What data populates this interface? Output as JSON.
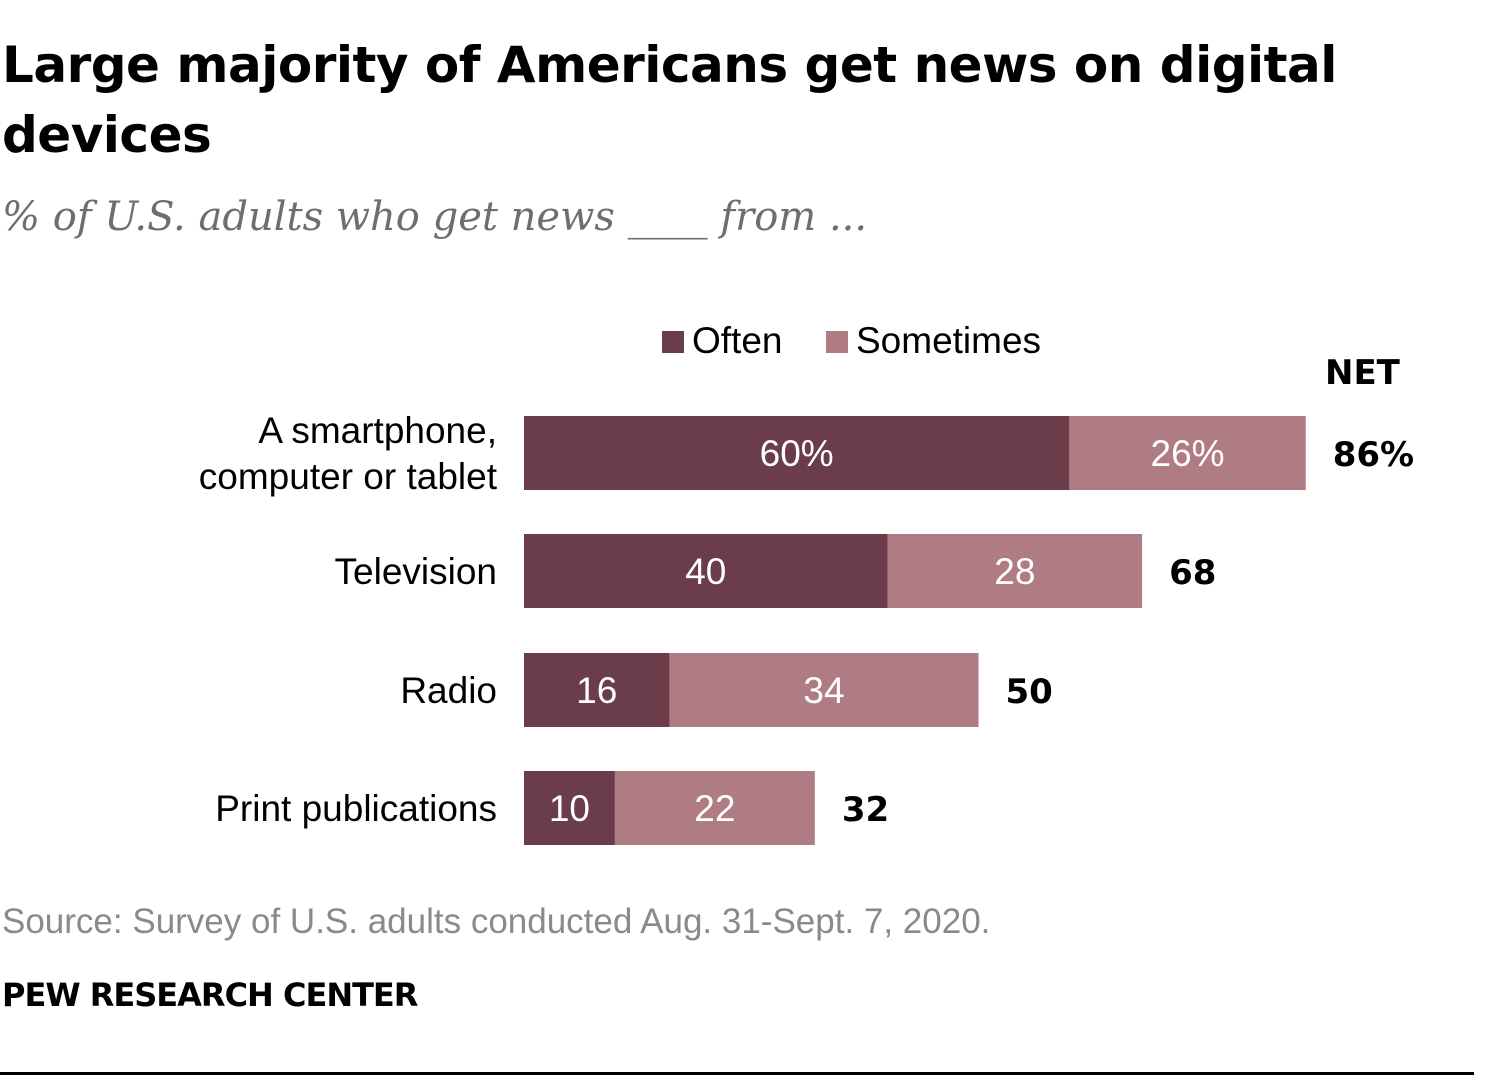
{
  "title": "Large majority of Americans get news on digital devices",
  "subtitle": "% of U.S. adults who get news ____ from ...",
  "source": "Source: Survey of U.S. adults conducted Aug. 31-Sept. 7, 2020.",
  "organization": "PEW RESEARCH CENTER",
  "colors": {
    "often": "#6b3d4a",
    "sometimes": "#b07c84",
    "bar_label_text": "#ffffff",
    "net_text": "#000000"
  },
  "chart_data": {
    "type": "bar",
    "orientation": "horizontal",
    "stacked": true,
    "title": "Large majority of Americans get news on digital devices",
    "subtitle": "% of U.S. adults who get news ____ from ...",
    "categories": [
      "A smartphone,\ncomputer or tablet",
      "Television",
      "Radio",
      "Print publications"
    ],
    "series": [
      {
        "name": "Often",
        "values": [
          60,
          40,
          16,
          10
        ],
        "labels": [
          "60%",
          "40",
          "16",
          "10"
        ]
      },
      {
        "name": "Sometimes",
        "values": [
          26,
          28,
          34,
          22
        ],
        "labels": [
          "26%",
          "28",
          "34",
          "22"
        ]
      }
    ],
    "net_header": "NET",
    "net_values": [
      86,
      68,
      50,
      32
    ],
    "net_labels": [
      "86%",
      "68",
      "50",
      "32"
    ],
    "legend_position": "top-center",
    "grid": false,
    "xlim": [
      0,
      100
    ]
  }
}
